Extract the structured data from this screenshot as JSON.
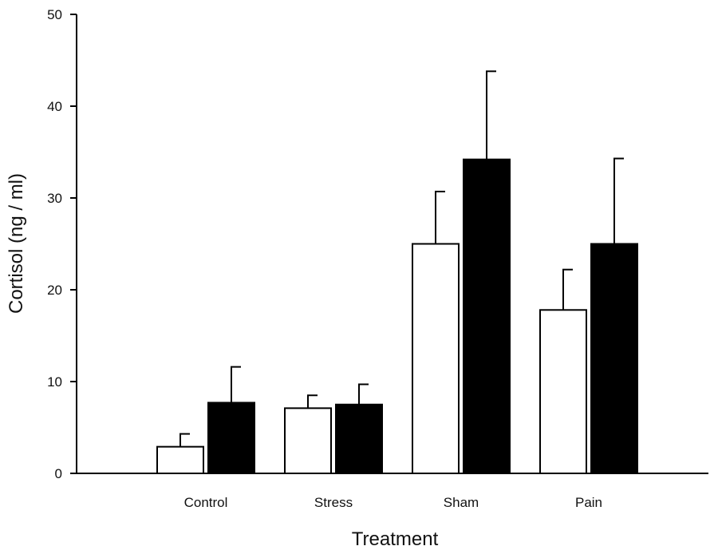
{
  "chart_data": {
    "type": "bar",
    "title": "",
    "xlabel": "Treatment",
    "ylabel": "Cortisol (ng / ml)",
    "categories": [
      "Control",
      "Stress",
      "Sham",
      "Pain"
    ],
    "ylim": [
      0,
      50
    ],
    "yticks": [
      0,
      10,
      20,
      30,
      40,
      50
    ],
    "grid": false,
    "legend": "none",
    "series": [
      {
        "color": "#ffffff",
        "values": [
          2.9,
          7.1,
          25.0,
          17.8
        ],
        "error_upper": [
          4.3,
          8.5,
          30.7,
          22.2
        ]
      },
      {
        "color": "#000000",
        "values": [
          7.7,
          7.5,
          34.2,
          25.0
        ],
        "error_upper": [
          11.6,
          9.7,
          43.8,
          34.3
        ]
      }
    ]
  }
}
